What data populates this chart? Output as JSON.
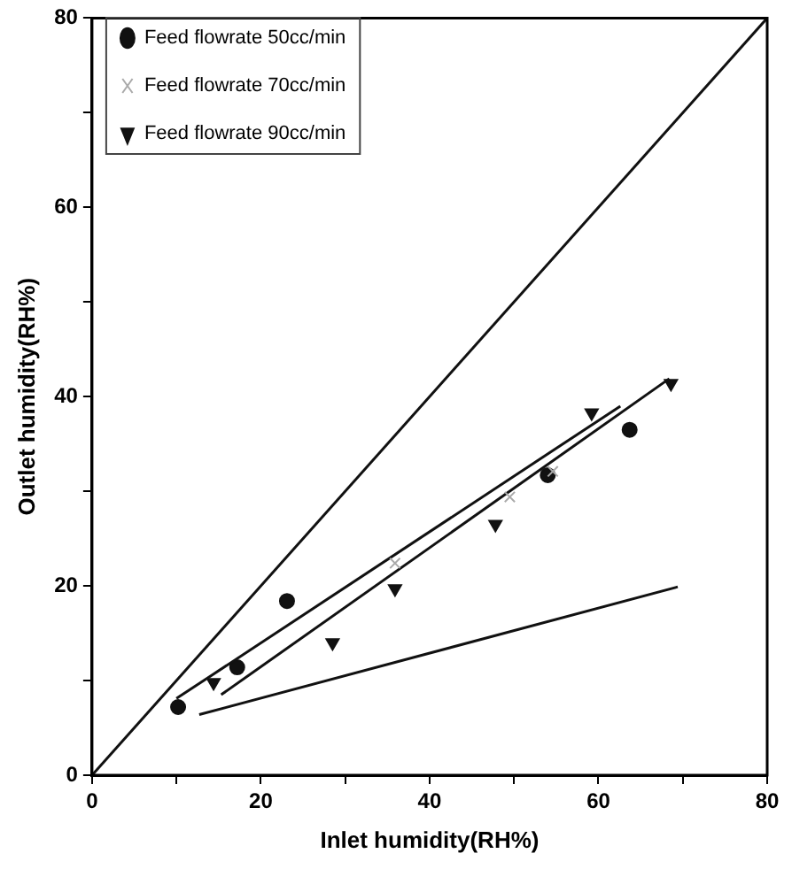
{
  "chart_data": {
    "type": "scatter",
    "xlabel": "Inlet humidity(RH%)",
    "ylabel": "Outlet humidity(RH%)",
    "xlim": [
      0,
      80
    ],
    "ylim": [
      0,
      80
    ],
    "xticks": [
      0,
      {
        "value": 10,
        "label": null
      },
      20,
      {
        "value": 30,
        "label": null
      },
      40,
      {
        "value": 50,
        "label": null
      },
      60,
      {
        "value": 70,
        "label": null
      },
      80
    ],
    "yticks": [
      0,
      {
        "value": 10,
        "label": null
      },
      20,
      {
        "value": 30,
        "label": null
      },
      40,
      {
        "value": 50,
        "label": null
      },
      60,
      {
        "value": 70,
        "label": null
      },
      80
    ],
    "grid": false,
    "legend": "top left",
    "series": [
      {
        "name": "Feed flowrate 50cc/min",
        "color": "#111111",
        "marker": "circle",
        "x": [
          10.2,
          17.2,
          23.1,
          54,
          63.7
        ],
        "values": [
          7.2,
          11.4,
          18.4,
          31.7,
          36.5
        ]
      },
      {
        "name": "Feed flowrate 70cc/min",
        "color": "#aaaaaa",
        "marker": "cross",
        "x": [
          35.9,
          49.5,
          54.6
        ],
        "values": [
          22.4,
          29.4,
          32.1
        ]
      },
      {
        "name": "Feed flowrate 90cc/min",
        "color": "#111111",
        "marker": "triangle",
        "x": [
          14.4,
          28.5,
          35.9,
          47.8,
          59.2,
          68.6
        ],
        "values": [
          9.8,
          14,
          19.7,
          26.5,
          38.3,
          41.4
        ]
      },
      {
        "type": "line",
        "color": "#111111",
        "x": [
          0,
          80
        ],
        "values": [
          0,
          80
        ]
      },
      {
        "type": "line",
        "color": "#111111",
        "x": [
          10,
          62.6
        ],
        "values": [
          8.1,
          39
        ]
      },
      {
        "type": "line",
        "color": "#111111",
        "x": [
          15.3,
          68.4
        ],
        "values": [
          8.5,
          41.9
        ]
      },
      {
        "type": "line",
        "color": "#111111",
        "x": [
          12.7,
          69.4
        ],
        "values": [
          6.4,
          19.9
        ]
      }
    ]
  }
}
